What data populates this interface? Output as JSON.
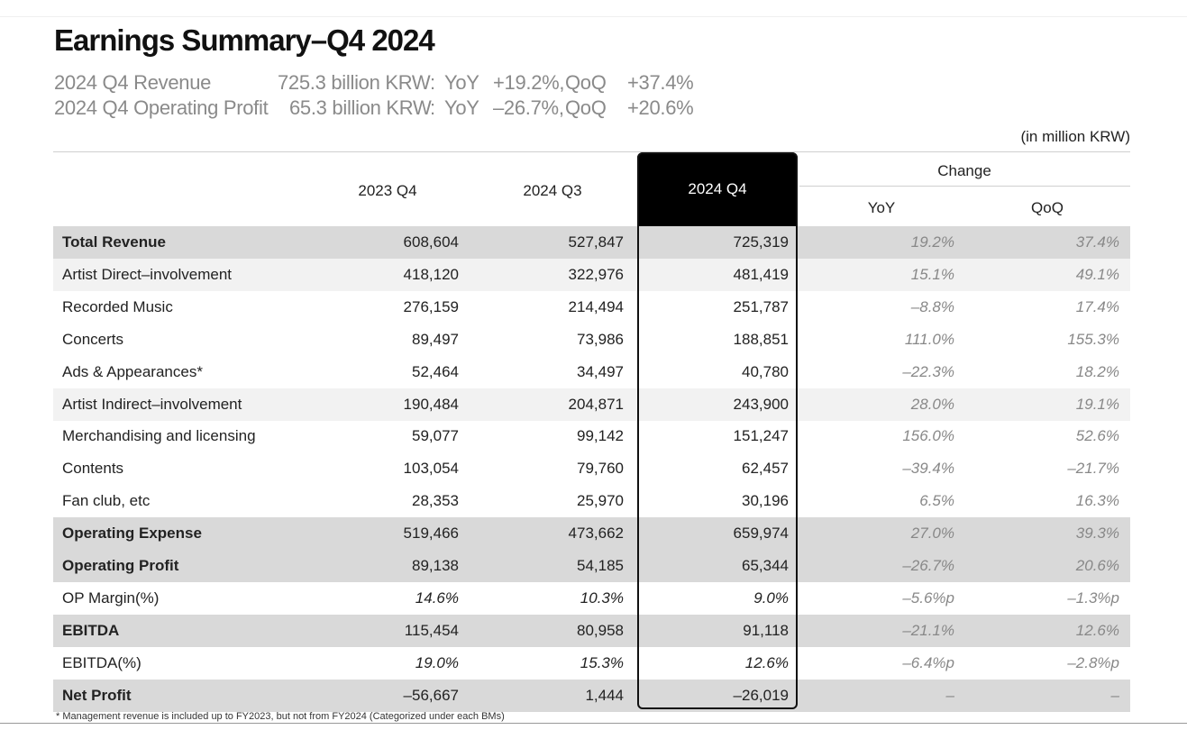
{
  "title": "Earnings Summary–Q4 2024",
  "summary": [
    {
      "label": "2024 Q4 Revenue",
      "value": "725.3 billion KRW",
      "yoy_label": "YoY",
      "yoy": "+19.2%,",
      "qoq_label": "QoQ",
      "qoq": "+37.4%"
    },
    {
      "label": "2024 Q4 Operating Profit",
      "value": "65.3 billion KRW",
      "yoy_label": "YoY",
      "yoy": "–26.7%,",
      "qoq_label": "QoQ",
      "qoq": "+20.6%"
    }
  ],
  "unit_note": "(in million KRW)",
  "columns": {
    "c1": "2023 Q4",
    "c2": "2024 Q3",
    "c3": "2024 Q4",
    "change": "Change",
    "yoy": "YoY",
    "qoq": "QoQ"
  },
  "rows": [
    {
      "label": "Total Revenue",
      "c1": "608,604",
      "c2": "527,847",
      "c3": "725,319",
      "yoy": "19.2%",
      "qoq": "37.4%",
      "style": "bold"
    },
    {
      "label": "Artist Direct–involvement",
      "c1": "418,120",
      "c2": "322,976",
      "c3": "481,419",
      "yoy": "15.1%",
      "qoq": "49.1%",
      "style": "shade"
    },
    {
      "label": "Recorded Music",
      "c1": "276,159",
      "c2": "214,494",
      "c3": "251,787",
      "yoy": "–8.8%",
      "qoq": "17.4%",
      "style": "plain"
    },
    {
      "label": "Concerts",
      "c1": "89,497",
      "c2": "73,986",
      "c3": "188,851",
      "yoy": "111.0%",
      "qoq": "155.3%",
      "style": "plain"
    },
    {
      "label": "Ads & Appearances*",
      "c1": "52,464",
      "c2": "34,497",
      "c3": "40,780",
      "yoy": "–22.3%",
      "qoq": "18.2%",
      "style": "plain"
    },
    {
      "label": "Artist Indirect–involvement",
      "c1": "190,484",
      "c2": "204,871",
      "c3": "243,900",
      "yoy": "28.0%",
      "qoq": "19.1%",
      "style": "shade"
    },
    {
      "label": "Merchandising and licensing",
      "c1": "59,077",
      "c2": "99,142",
      "c3": "151,247",
      "yoy": "156.0%",
      "qoq": "52.6%",
      "style": "plain"
    },
    {
      "label": "Contents",
      "c1": "103,054",
      "c2": "79,760",
      "c3": "62,457",
      "yoy": "–39.4%",
      "qoq": "–21.7%",
      "style": "plain"
    },
    {
      "label": "Fan club, etc",
      "c1": "28,353",
      "c2": "25,970",
      "c3": "30,196",
      "yoy": "6.5%",
      "qoq": "16.3%",
      "style": "plain"
    },
    {
      "label": "Operating Expense",
      "c1": "519,466",
      "c2": "473,662",
      "c3": "659,974",
      "yoy": "27.0%",
      "qoq": "39.3%",
      "style": "bold"
    },
    {
      "label": "Operating Profit",
      "c1": "89,138",
      "c2": "54,185",
      "c3": "65,344",
      "yoy": "–26.7%",
      "qoq": "20.6%",
      "style": "bold"
    },
    {
      "label": "OP Margin(%)",
      "c1": "14.6%",
      "c2": "10.3%",
      "c3": "9.0%",
      "yoy": "–5.6%p",
      "qoq": "–1.3%p",
      "style": "plain",
      "italic": true
    },
    {
      "label": "EBITDA",
      "c1": "115,454",
      "c2": "80,958",
      "c3": "91,118",
      "yoy": "–21.1%",
      "qoq": "12.6%",
      "style": "bold"
    },
    {
      "label": "EBITDA(%)",
      "c1": "19.0%",
      "c2": "15.3%",
      "c3": "12.6%",
      "yoy": "–6.4%p",
      "qoq": "–2.8%p",
      "style": "plain",
      "italic": true
    },
    {
      "label": "Net Profit",
      "c1": "–56,667",
      "c2": "1,444",
      "c3": "–26,019",
      "yoy": "–",
      "qoq": "–",
      "style": "bold"
    }
  ],
  "footnote": "* Management revenue is included up to FY2023, but not from FY2024 (Categorized under each BMs)"
}
